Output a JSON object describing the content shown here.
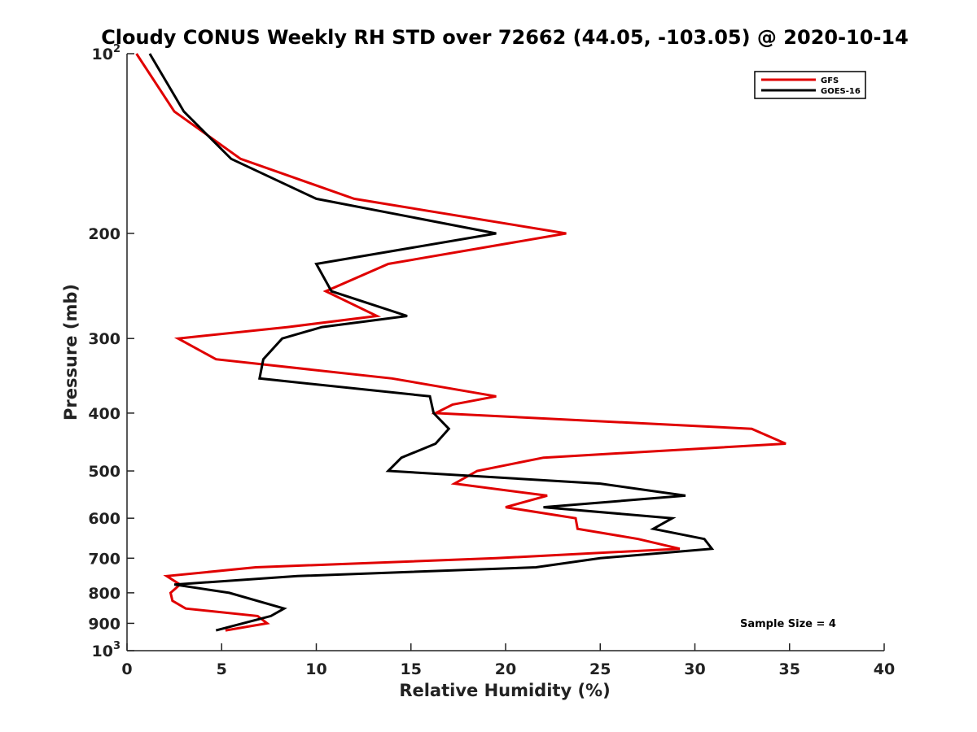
{
  "chart_data": {
    "type": "line",
    "title": "Cloudy CONUS Weekly RH STD over 72662 (44.05, -103.05) @ 2020-10-14",
    "xlabel": "Relative Humidity (%)",
    "ylabel": "Pressure (mb)",
    "xlim": [
      0,
      40
    ],
    "ylim": [
      100,
      1000
    ],
    "y_scale": "log",
    "y_reversed": true,
    "grid": false,
    "legend_position": "top-right",
    "x_ticks": [
      "0",
      "5",
      "10",
      "15",
      "20",
      "25",
      "30",
      "35",
      "40"
    ],
    "y_ticks": [
      {
        "value": 100,
        "base": "10",
        "exp": "2"
      },
      {
        "value": 200,
        "label": "200"
      },
      {
        "value": 300,
        "label": "300"
      },
      {
        "value": 400,
        "label": "400"
      },
      {
        "value": 500,
        "label": "500"
      },
      {
        "value": 600,
        "label": "600"
      },
      {
        "value": 700,
        "label": "700"
      },
      {
        "value": 800,
        "label": "800"
      },
      {
        "value": 900,
        "label": "900"
      },
      {
        "value": 1000,
        "base": "10",
        "exp": "3"
      }
    ],
    "annotation": "Sample Size = 4",
    "series": [
      {
        "name": "GFS",
        "color": "#e00000",
        "points": [
          [
            0.5,
            100
          ],
          [
            2.5,
            125
          ],
          [
            6.0,
            150
          ],
          [
            12.0,
            175
          ],
          [
            23.2,
            200
          ],
          [
            13.8,
            225
          ],
          [
            10.5,
            250
          ],
          [
            13.2,
            275
          ],
          [
            8.5,
            287
          ],
          [
            2.7,
            300
          ],
          [
            4.7,
            325
          ],
          [
            14.0,
            350
          ],
          [
            19.5,
            375
          ],
          [
            17.2,
            387
          ],
          [
            16.3,
            400
          ],
          [
            33.0,
            425
          ],
          [
            34.8,
            450
          ],
          [
            22.0,
            475
          ],
          [
            18.5,
            500
          ],
          [
            17.3,
            525
          ],
          [
            22.2,
            550
          ],
          [
            20.0,
            575
          ],
          [
            23.7,
            600
          ],
          [
            23.8,
            625
          ],
          [
            27.0,
            650
          ],
          [
            29.2,
            675
          ],
          [
            19.5,
            700
          ],
          [
            6.8,
            725
          ],
          [
            2.1,
            750
          ],
          [
            2.8,
            775
          ],
          [
            2.3,
            800
          ],
          [
            2.4,
            825
          ],
          [
            3.1,
            850
          ],
          [
            6.9,
            875
          ],
          [
            7.4,
            900
          ],
          [
            5.2,
            925
          ]
        ]
      },
      {
        "name": "GOES-16",
        "color": "#000000",
        "points": [
          [
            1.2,
            100
          ],
          [
            3.0,
            125
          ],
          [
            5.5,
            150
          ],
          [
            10.0,
            175
          ],
          [
            19.5,
            200
          ],
          [
            10.0,
            225
          ],
          [
            10.8,
            250
          ],
          [
            14.8,
            275
          ],
          [
            10.3,
            287
          ],
          [
            8.2,
            300
          ],
          [
            7.2,
            325
          ],
          [
            7.0,
            350
          ],
          [
            16.0,
            375
          ],
          [
            16.2,
            400
          ],
          [
            17.0,
            425
          ],
          [
            16.3,
            450
          ],
          [
            14.5,
            475
          ],
          [
            13.8,
            500
          ],
          [
            25.0,
            525
          ],
          [
            29.5,
            550
          ],
          [
            22.0,
            575
          ],
          [
            28.8,
            600
          ],
          [
            27.8,
            625
          ],
          [
            30.5,
            650
          ],
          [
            30.9,
            675
          ],
          [
            25.0,
            700
          ],
          [
            21.6,
            725
          ],
          [
            9.0,
            750
          ],
          [
            2.5,
            775
          ],
          [
            5.4,
            800
          ],
          [
            8.3,
            850
          ],
          [
            7.6,
            875
          ],
          [
            4.7,
            925
          ]
        ]
      }
    ]
  }
}
